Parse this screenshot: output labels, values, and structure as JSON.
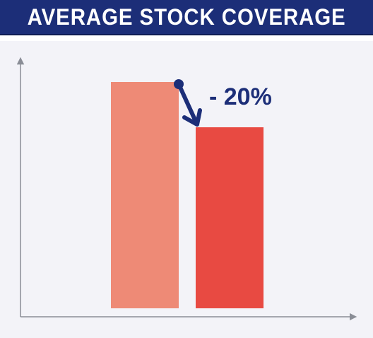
{
  "title": "AVERAGE STOCK COVERAGE",
  "colors": {
    "banner": "#1c2e78",
    "bar_before": "#ee8a76",
    "bar_after": "#e84a42",
    "annotation": "#1c2e78",
    "axis": "#8a8d96"
  },
  "chart_data": {
    "type": "bar",
    "title": "AVERAGE STOCK COVERAGE",
    "categories": [
      "",
      ""
    ],
    "values": [
      100,
      80
    ],
    "bar_colors": [
      "#ee8a76",
      "#e84a42"
    ],
    "xlabel": "",
    "ylabel": "",
    "ylim": [
      0,
      100
    ],
    "grid": false,
    "axis_ticks": false,
    "annotations": [
      {
        "text": "- 20%",
        "from_category": 0,
        "to_category": 1,
        "arrow": true
      }
    ]
  }
}
